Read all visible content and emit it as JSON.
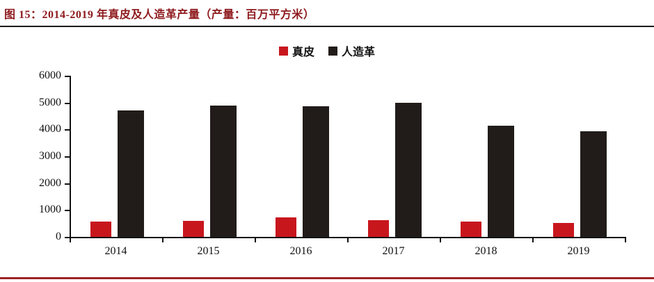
{
  "caption": {
    "text": "图 15：2014-2019 年真皮及人造革产量（产量：百万平方米）"
  },
  "chart_data": {
    "type": "bar",
    "title": "2014-2019 年真皮及人造革产量（产量：百万平方米）",
    "categories": [
      "2014",
      "2015",
      "2016",
      "2017",
      "2018",
      "2019"
    ],
    "series": [
      {
        "name": "真皮",
        "color": "#c8161d",
        "values": [
          580,
          600,
          720,
          630,
          560,
          520
        ]
      },
      {
        "name": "人造革",
        "color": "#211c19",
        "values": [
          4700,
          4890,
          4870,
          4980,
          4150,
          3930
        ]
      }
    ],
    "xlabel": "",
    "ylabel": "",
    "ylim": [
      0,
      6000
    ],
    "yticks": [
      0,
      1000,
      2000,
      3000,
      4000,
      5000,
      6000
    ],
    "legend_position": "top",
    "grid": false
  },
  "colors": {
    "caption_text": "#8e1a1d",
    "axis": "#111111",
    "rule_top": "#1a1a1a",
    "rule_bottom": "#9e2123",
    "bar_red": "#c8161d",
    "bar_black": "#211c19"
  }
}
